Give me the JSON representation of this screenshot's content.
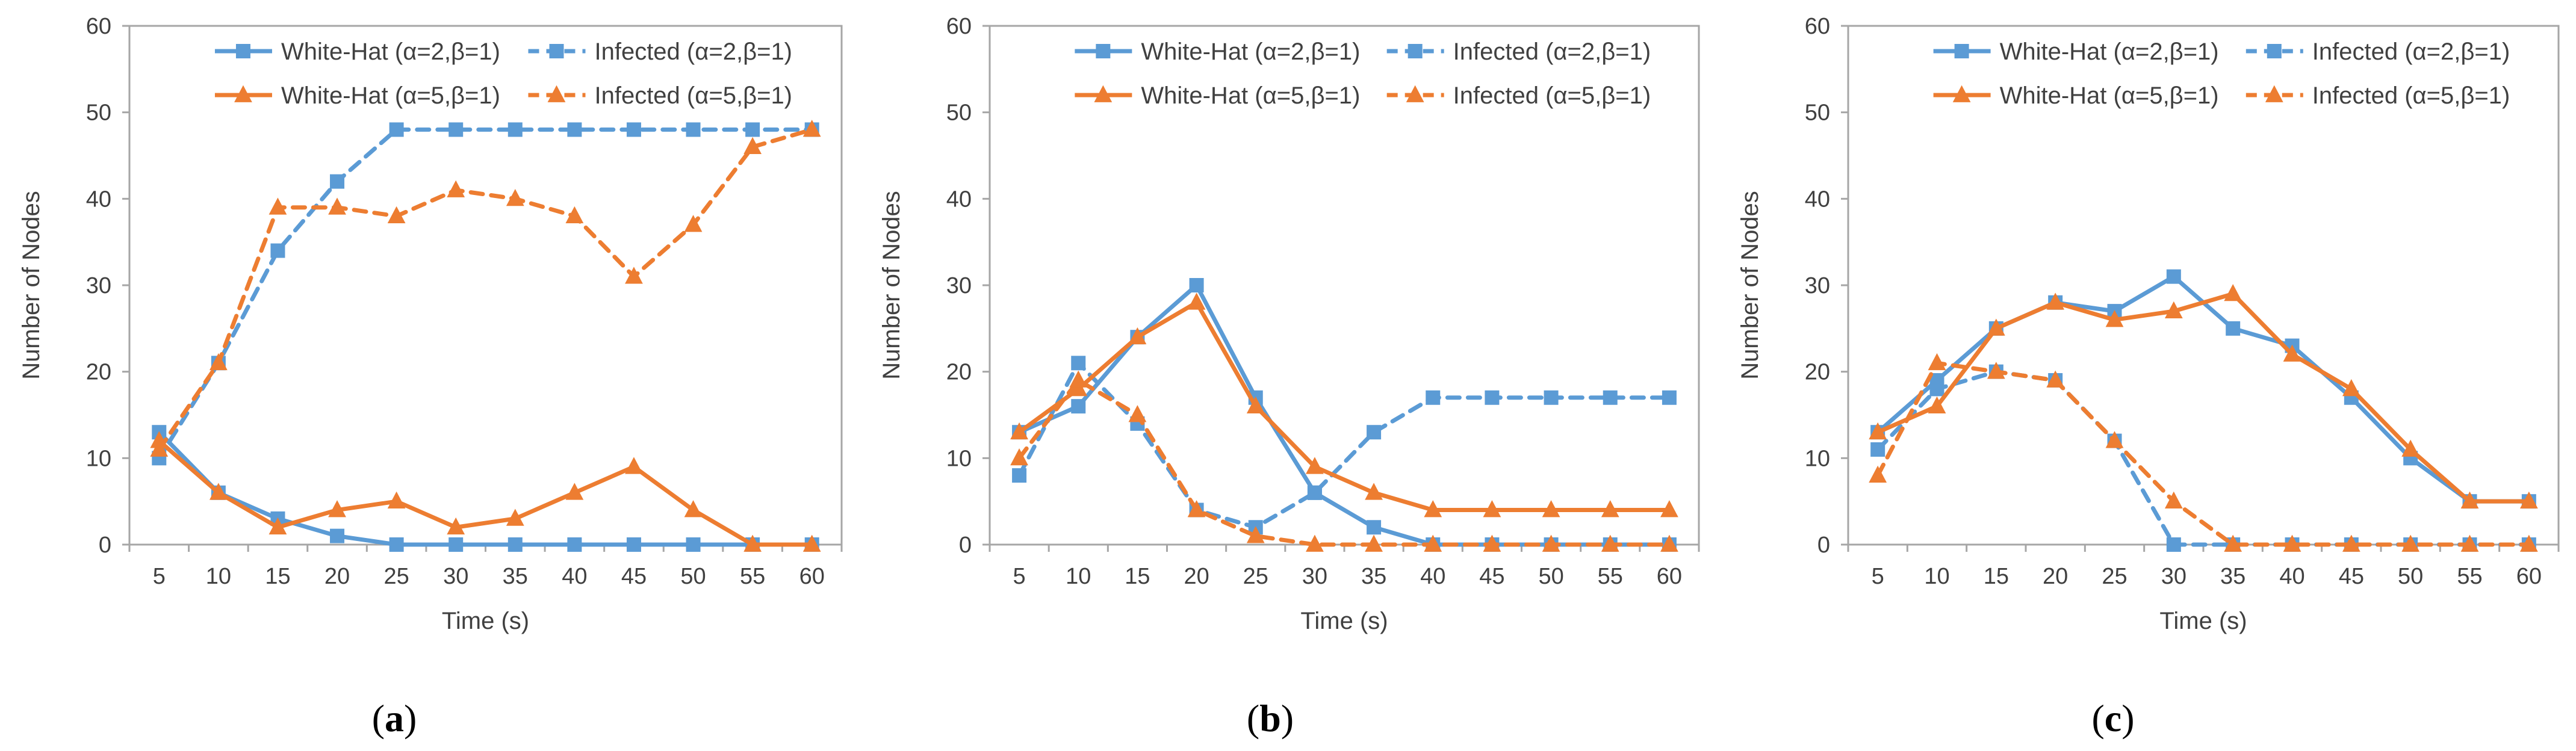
{
  "colors": {
    "blue": "#5b9bd5",
    "orange": "#ed7d31",
    "axis": "#a6a6a6",
    "text": "#404040"
  },
  "chart_data": [
    {
      "type": "line",
      "panel_label_open": "(",
      "panel_label_letter": "a",
      "panel_label_close": ")",
      "xlabel": "Time (s)",
      "ylabel": "Number of Nodes",
      "categories": [
        "5",
        "10",
        "15",
        "20",
        "25",
        "30",
        "35",
        "40",
        "45",
        "50",
        "55",
        "60"
      ],
      "ylim": [
        0,
        60
      ],
      "yticks": [
        "0",
        "10",
        "20",
        "30",
        "40",
        "50",
        "60"
      ],
      "legend_position": "top",
      "series": [
        {
          "name": "White-Hat (α=2,β=1)",
          "color": "blue",
          "dashed": false,
          "marker": "square",
          "values": [
            13,
            6,
            3,
            1,
            0,
            0,
            0,
            0,
            0,
            0,
            0,
            0
          ]
        },
        {
          "name": "Infected (α=2,β=1)",
          "color": "blue",
          "dashed": true,
          "marker": "square",
          "values": [
            10,
            21,
            34,
            42,
            48,
            48,
            48,
            48,
            48,
            48,
            48,
            48
          ]
        },
        {
          "name": "White-Hat (α=5,β=1)",
          "color": "orange",
          "dashed": false,
          "marker": "triangle",
          "values": [
            12,
            6,
            2,
            4,
            5,
            2,
            3,
            6,
            9,
            4,
            0,
            0
          ]
        },
        {
          "name": "Infected (α=5,β=1)",
          "color": "orange",
          "dashed": true,
          "marker": "triangle",
          "values": [
            11,
            21,
            39,
            39,
            38,
            41,
            40,
            38,
            31,
            37,
            46,
            48
          ]
        }
      ]
    },
    {
      "type": "line",
      "panel_label_open": "(",
      "panel_label_letter": "b",
      "panel_label_close": ")",
      "xlabel": "Time (s)",
      "ylabel": "Number of Nodes",
      "categories": [
        "5",
        "10",
        "15",
        "20",
        "25",
        "30",
        "35",
        "40",
        "45",
        "50",
        "55",
        "60"
      ],
      "ylim": [
        0,
        60
      ],
      "yticks": [
        "0",
        "10",
        "20",
        "30",
        "40",
        "50",
        "60"
      ],
      "legend_position": "top",
      "series": [
        {
          "name": "White-Hat (α=2,β=1)",
          "color": "blue",
          "dashed": false,
          "marker": "square",
          "values": [
            13,
            16,
            24,
            30,
            17,
            6,
            2,
            0,
            0,
            0,
            0,
            0
          ]
        },
        {
          "name": "Infected (α=2,β=1)",
          "color": "blue",
          "dashed": true,
          "marker": "square",
          "values": [
            8,
            21,
            14,
            4,
            2,
            6,
            13,
            17,
            17,
            17,
            17,
            17
          ]
        },
        {
          "name": "White-Hat (α=5,β=1)",
          "color": "orange",
          "dashed": false,
          "marker": "triangle",
          "values": [
            13,
            18,
            24,
            28,
            16,
            9,
            6,
            4,
            4,
            4,
            4,
            4
          ]
        },
        {
          "name": "Infected (α=5,β=1)",
          "color": "orange",
          "dashed": true,
          "marker": "triangle",
          "values": [
            10,
            19,
            15,
            4,
            1,
            0,
            0,
            0,
            0,
            0,
            0,
            0
          ]
        }
      ]
    },
    {
      "type": "line",
      "panel_label_open": "(",
      "panel_label_letter": "c",
      "panel_label_close": ")",
      "xlabel": "Time (s)",
      "ylabel": "Number of Nodes",
      "categories": [
        "5",
        "10",
        "15",
        "20",
        "25",
        "30",
        "35",
        "40",
        "45",
        "50",
        "55",
        "60"
      ],
      "ylim": [
        0,
        60
      ],
      "yticks": [
        "0",
        "10",
        "20",
        "30",
        "40",
        "50",
        "60"
      ],
      "legend_position": "top",
      "series": [
        {
          "name": "White-Hat (α=2,β=1)",
          "color": "blue",
          "dashed": false,
          "marker": "square",
          "values": [
            13,
            19,
            25,
            28,
            27,
            31,
            25,
            23,
            17,
            10,
            5,
            5
          ]
        },
        {
          "name": "Infected (α=2,β=1)",
          "color": "blue",
          "dashed": true,
          "marker": "square",
          "values": [
            11,
            18,
            20,
            19,
            12,
            0,
            0,
            0,
            0,
            0,
            0,
            0
          ]
        },
        {
          "name": "White-Hat (α=5,β=1)",
          "color": "orange",
          "dashed": false,
          "marker": "triangle",
          "values": [
            13,
            16,
            25,
            28,
            26,
            27,
            29,
            22,
            18,
            11,
            5,
            5
          ]
        },
        {
          "name": "Infected (α=5,β=1)",
          "color": "orange",
          "dashed": true,
          "marker": "triangle",
          "values": [
            8,
            21,
            20,
            19,
            12,
            5,
            0,
            0,
            0,
            0,
            0,
            0
          ]
        }
      ]
    }
  ]
}
